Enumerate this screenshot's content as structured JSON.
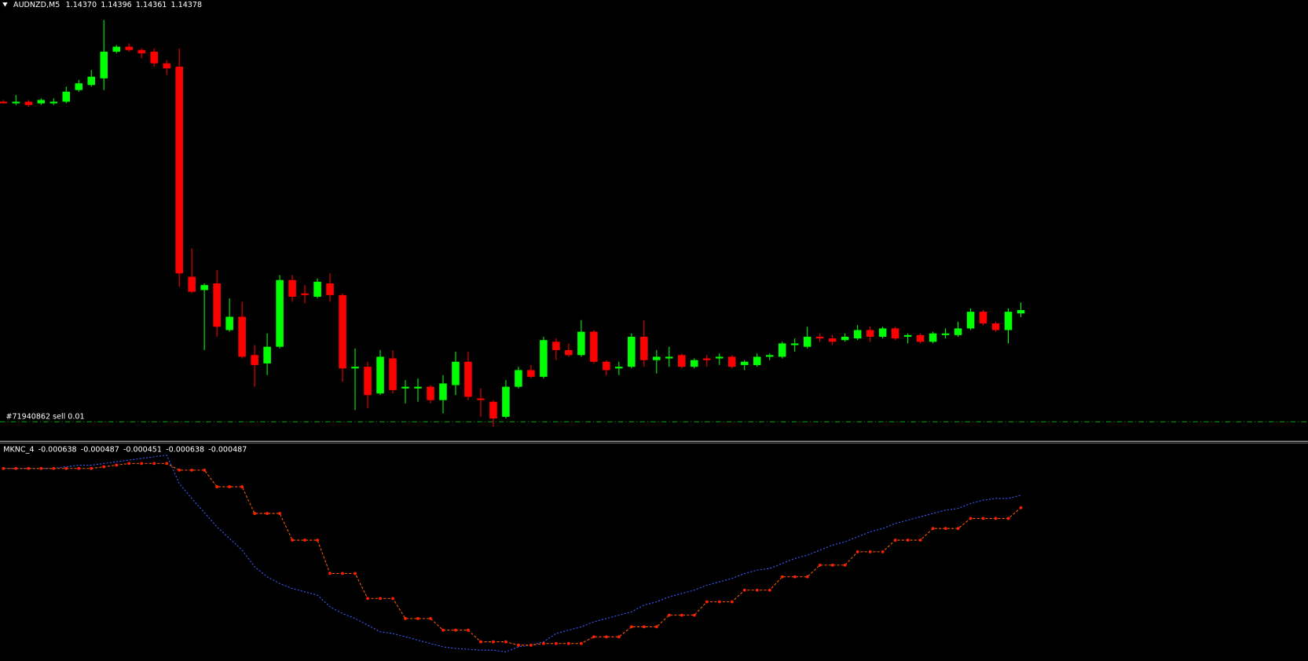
{
  "header": {
    "symbol": "AUDNZD,M5",
    "quotes": [
      "1.14370",
      "1.14396",
      "1.14361",
      "1.14378"
    ]
  },
  "price_chart": {
    "type": "candlestick",
    "up_color": "#00ff00",
    "down_color": "#ff0000",
    "ylim": [
      1.14066,
      1.15122
    ],
    "open": [
      1.14878,
      1.14874,
      1.14878,
      1.14874,
      1.14874,
      1.14878,
      1.14906,
      1.14918,
      1.14934,
      1.14998,
      1.1501,
      1.15002,
      1.14998,
      1.1497,
      1.14962,
      1.14458,
      1.14426,
      1.14442,
      1.1433,
      1.14362,
      1.1427,
      1.1425,
      1.1429,
      1.1445,
      1.14418,
      1.1441,
      1.14442,
      1.14414,
      1.14238,
      1.14242,
      1.14178,
      1.14262,
      1.1419,
      1.1419,
      1.14194,
      1.14162,
      1.14198,
      1.14254,
      1.14166,
      1.14158,
      1.14122,
      1.14194,
      1.14234,
      1.14218,
      1.14302,
      1.14282,
      1.1427,
      1.14326,
      1.14254,
      1.14238,
      1.14242,
      1.14314,
      1.14258,
      1.14262,
      1.1427,
      1.14242,
      1.14262,
      1.14262,
      1.14266,
      1.14246,
      1.14246,
      1.14266,
      1.14266,
      1.14294,
      1.1429,
      1.14314,
      1.1431,
      1.14306,
      1.1431,
      1.1433,
      1.14314,
      1.14334,
      1.14314,
      1.14318,
      1.14302,
      1.14318,
      1.14318,
      1.14334,
      1.14374,
      1.14346,
      1.1433,
      1.1437
    ],
    "high": [
      1.14882,
      1.14894,
      1.14882,
      1.14886,
      1.14886,
      1.14914,
      1.1493,
      1.14954,
      1.15074,
      1.15014,
      1.15018,
      1.15006,
      1.15006,
      1.14978,
      1.15006,
      1.14526,
      1.14442,
      1.14474,
      1.14406,
      1.14398,
      1.14294,
      1.14322,
      1.14462,
      1.14462,
      1.14438,
      1.14454,
      1.14466,
      1.14418,
      1.14286,
      1.14254,
      1.14282,
      1.14282,
      1.1421,
      1.14214,
      1.14198,
      1.14222,
      1.14278,
      1.14278,
      1.1419,
      1.14162,
      1.1421,
      1.14242,
      1.14246,
      1.14314,
      1.1431,
      1.14298,
      1.14354,
      1.1433,
      1.14258,
      1.14254,
      1.14322,
      1.14354,
      1.14282,
      1.1429,
      1.14274,
      1.14262,
      1.1427,
      1.14274,
      1.1427,
      1.14258,
      1.14274,
      1.14274,
      1.14302,
      1.1431,
      1.14338,
      1.14322,
      1.14318,
      1.14322,
      1.14342,
      1.14338,
      1.14338,
      1.14338,
      1.14322,
      1.14322,
      1.14326,
      1.14334,
      1.1435,
      1.14382,
      1.14378,
      1.1435,
      1.14382,
      1.14396
    ],
    "low": [
      1.14874,
      1.1487,
      1.14866,
      1.1487,
      1.1487,
      1.14874,
      1.14902,
      1.14914,
      1.14906,
      1.14994,
      1.14998,
      1.14982,
      1.14962,
      1.14942,
      1.14434,
      1.14418,
      1.14282,
      1.14314,
      1.14326,
      1.14262,
      1.14194,
      1.14222,
      1.14286,
      1.14398,
      1.14394,
      1.14406,
      1.14398,
      1.14206,
      1.14138,
      1.14142,
      1.14174,
      1.14178,
      1.14154,
      1.14158,
      1.14154,
      1.1413,
      1.14174,
      1.14162,
      1.14122,
      1.14098,
      1.14118,
      1.1419,
      1.14214,
      1.14214,
      1.14258,
      1.14266,
      1.14266,
      1.1425,
      1.14222,
      1.14222,
      1.14238,
      1.14242,
      1.14226,
      1.14242,
      1.14238,
      1.14238,
      1.14242,
      1.14246,
      1.14238,
      1.14234,
      1.14242,
      1.14258,
      1.14262,
      1.14278,
      1.14286,
      1.14302,
      1.14294,
      1.14302,
      1.14306,
      1.14302,
      1.1431,
      1.14306,
      1.14298,
      1.14298,
      1.14298,
      1.1431,
      1.14314,
      1.1433,
      1.14342,
      1.14326,
      1.14298,
      1.14361
    ],
    "close": [
      1.14874,
      1.14878,
      1.1487,
      1.14882,
      1.14878,
      1.14902,
      1.14922,
      1.14938,
      1.14998,
      1.1501,
      1.15002,
      1.14994,
      1.1497,
      1.14958,
      1.14466,
      1.14422,
      1.14438,
      1.14338,
      1.14362,
      1.14266,
      1.14246,
      1.1429,
      1.1445,
      1.1441,
      1.14414,
      1.14446,
      1.14414,
      1.14238,
      1.14242,
      1.14174,
      1.14266,
      1.14186,
      1.14194,
      1.14194,
      1.14162,
      1.14202,
      1.14254,
      1.1417,
      1.14162,
      1.14118,
      1.14194,
      1.14234,
      1.14218,
      1.14306,
      1.14282,
      1.1427,
      1.14326,
      1.14254,
      1.14234,
      1.14242,
      1.14314,
      1.14258,
      1.14266,
      1.14266,
      1.14242,
      1.14258,
      1.14258,
      1.14266,
      1.14242,
      1.14254,
      1.14266,
      1.1427,
      1.14298,
      1.14298,
      1.14314,
      1.1431,
      1.14302,
      1.14314,
      1.1433,
      1.14314,
      1.14334,
      1.1431,
      1.14318,
      1.14302,
      1.14322,
      1.14322,
      1.14334,
      1.14374,
      1.14346,
      1.1433,
      1.14374,
      1.14378
    ],
    "order": {
      "label": "#71940862 sell 0.01",
      "price": 1.1411,
      "color": "#00b000"
    }
  },
  "indicator": {
    "type": "line",
    "title": "MKNC_4",
    "header_values": [
      "-0.000638",
      "-0.000487",
      "-0.000451",
      "-0.000638",
      "-0.000487"
    ],
    "ylim": [
      -0.002477,
      0.000143
    ],
    "series": [
      {
        "color": "#3d5cff",
        "values": [
          -0.000167,
          -0.000167,
          -0.000167,
          -0.000167,
          -0.000167,
          -0.000147,
          -0.000127,
          -0.000127,
          -0.000107,
          -8.7e-05,
          -6.7e-05,
          -4.7e-05,
          -2.7e-05,
          -7e-06,
          -0.000347,
          -0.000527,
          -0.000697,
          -0.000867,
          -0.001007,
          -0.001147,
          -0.001347,
          -0.001467,
          -0.001547,
          -0.001607,
          -0.001647,
          -0.001687,
          -0.001827,
          -0.001907,
          -0.001967,
          -0.002047,
          -0.002127,
          -0.002147,
          -0.002187,
          -0.002227,
          -0.002267,
          -0.002307,
          -0.002327,
          -0.002337,
          -0.002347,
          -0.002347,
          -0.002367,
          -0.002307,
          -0.002287,
          -0.002247,
          -0.002147,
          -0.002107,
          -0.002067,
          -0.002007,
          -0.001967,
          -0.001927,
          -0.001887,
          -0.001807,
          -0.001767,
          -0.001707,
          -0.001667,
          -0.001627,
          -0.001567,
          -0.001527,
          -0.001487,
          -0.001427,
          -0.001387,
          -0.001367,
          -0.001307,
          -0.001247,
          -0.001207,
          -0.001147,
          -0.001087,
          -0.001047,
          -0.000987,
          -0.000927,
          -0.000887,
          -0.000827,
          -0.000787,
          -0.000747,
          -0.000707,
          -0.000667,
          -0.000647,
          -0.000587,
          -0.000547,
          -0.000527,
          -0.000527,
          -0.000487
        ]
      },
      {
        "color": "#ff5a00",
        "values": [
          -0.000167,
          -0.000167,
          -0.000167,
          -0.000167,
          -0.000167,
          -0.000167,
          -0.000167,
          -0.000167,
          -0.000147,
          -0.000127,
          -0.000107,
          -0.000107,
          -0.000107,
          -0.000107,
          -0.000187,
          -0.000187,
          -0.000187,
          -0.000387,
          -0.000387,
          -0.000387,
          -0.000707,
          -0.000707,
          -0.000707,
          -0.001027,
          -0.001027,
          -0.001027,
          -0.001427,
          -0.001427,
          -0.001427,
          -0.001727,
          -0.001727,
          -0.001727,
          -0.001967,
          -0.001967,
          -0.001967,
          -0.002107,
          -0.002107,
          -0.002107,
          -0.002247,
          -0.002247,
          -0.002247,
          -0.002287,
          -0.002287,
          -0.002267,
          -0.002267,
          -0.002267,
          -0.002267,
          -0.002187,
          -0.002187,
          -0.002187,
          -0.002067,
          -0.002067,
          -0.002067,
          -0.001927,
          -0.001927,
          -0.001927,
          -0.001767,
          -0.001767,
          -0.001767,
          -0.001627,
          -0.001627,
          -0.001627,
          -0.001467,
          -0.001467,
          -0.001467,
          -0.001327,
          -0.001327,
          -0.001327,
          -0.001167,
          -0.001167,
          -0.001167,
          -0.001027,
          -0.001027,
          -0.001027,
          -0.000887,
          -0.000887,
          -0.000887,
          -0.000767,
          -0.000767,
          -0.000767,
          -0.000767,
          -0.000638
        ]
      }
    ]
  }
}
